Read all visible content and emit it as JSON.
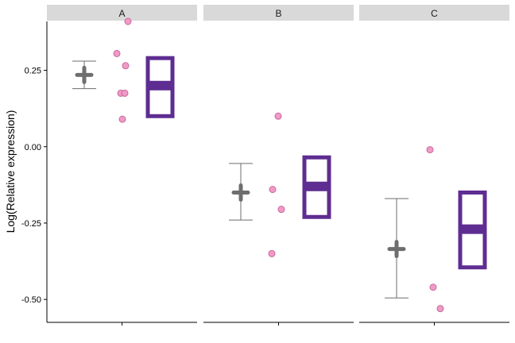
{
  "chart_data": {
    "type": "scatter",
    "ylabel": "Log(Relative expression)",
    "xlabel": "",
    "ylim": [
      -0.575,
      0.41
    ],
    "yticks": [
      0.25,
      0,
      -0.25,
      -0.5
    ],
    "ytick_labels": [
      "0.25",
      "0.00",
      "-0.25",
      "-0.50"
    ],
    "grid": false,
    "facets": [
      {
        "label": "A",
        "points": [
          0.41,
          0.305,
          0.265,
          0.175,
          0.175,
          0.09
        ],
        "mean": 0.235,
        "error_bar": [
          0.19,
          0.28
        ],
        "box": {
          "lower": 0.1,
          "median": 0.2,
          "upper": 0.29
        }
      },
      {
        "label": "B",
        "points": [
          0.1,
          -0.14,
          -0.205,
          -0.35
        ],
        "mean": -0.15,
        "error_bar": [
          -0.24,
          -0.055
        ],
        "box": {
          "lower": -0.23,
          "median": -0.13,
          "upper": -0.035
        }
      },
      {
        "label": "C",
        "points": [
          -0.01,
          -0.46,
          -0.53
        ],
        "mean": -0.335,
        "error_bar": [
          -0.495,
          -0.17
        ],
        "box": {
          "lower": -0.395,
          "median": -0.27,
          "upper": -0.15
        }
      }
    ]
  },
  "colors": {
    "strip": "#d9d9d9",
    "mean_marker": "#6e6e6e",
    "error_bar": "#6e6e6e",
    "point_fill": "#f19ac7",
    "point_stroke": "#c56a9c",
    "box": "#5e2d91"
  }
}
